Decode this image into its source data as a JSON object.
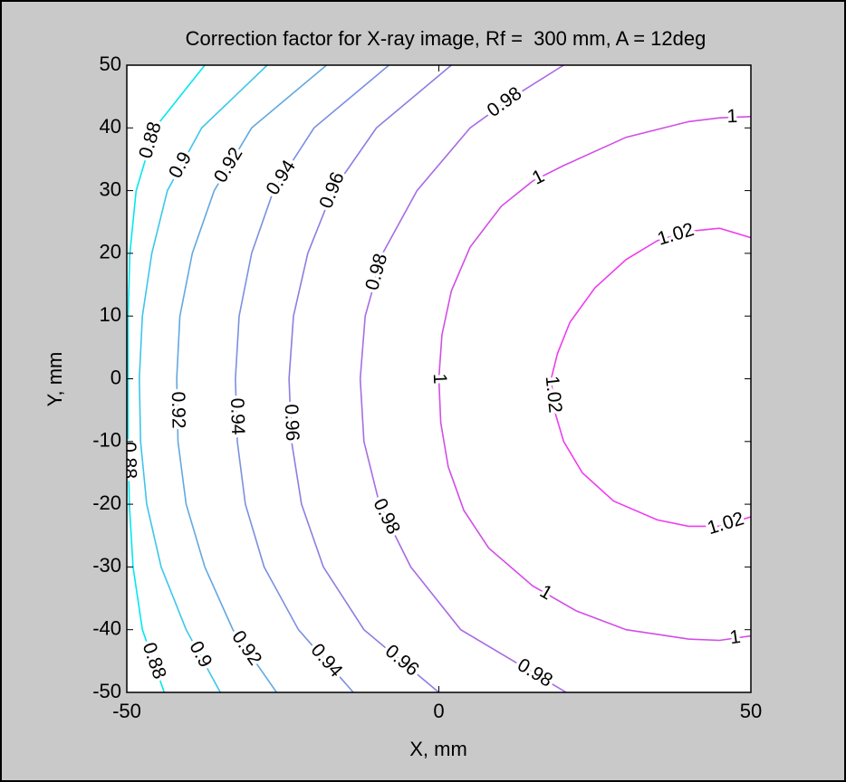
{
  "chart_data": {
    "type": "contour",
    "title": "Correction factor for X-ray image, Rf =  300 mm, A = 12deg",
    "x_label": "X, mm",
    "y_label": "Y, mm",
    "xlim": [
      -50,
      50
    ],
    "ylim": [
      -50,
      50
    ],
    "xticks": [
      -50,
      0,
      50
    ],
    "yticks": [
      -50,
      -40,
      -30,
      -20,
      -10,
      0,
      10,
      20,
      30,
      40,
      50
    ],
    "series": [
      {
        "level": 0.88,
        "color": "#00e8f0",
        "x": [
          -37.5,
          -45.5,
          -48.5,
          -49.5,
          -49.8,
          -49.8,
          -49.8,
          -49.6,
          -49,
          -47.5,
          -44
        ],
        "y": [
          50,
          40,
          30,
          20,
          10,
          0,
          -10,
          -20,
          -30,
          -40,
          -50
        ]
      },
      {
        "level": 0.9,
        "color": "#3cc6ea",
        "x": [
          -27.5,
          -38,
          -43.5,
          -46,
          -47.5,
          -48,
          -47.8,
          -46.8,
          -44.5,
          -40.5,
          -35
        ],
        "y": [
          50,
          40,
          30,
          20,
          10,
          0,
          -10,
          -20,
          -30,
          -40,
          -50
        ]
      },
      {
        "level": 0.92,
        "color": "#62a8e0",
        "x": [
          -18,
          -30,
          -36,
          -39.5,
          -41.5,
          -42,
          -41.8,
          -40.5,
          -37.5,
          -33,
          -26
        ],
        "y": [
          50,
          40,
          30,
          20,
          10,
          0,
          -10,
          -20,
          -30,
          -40,
          -50
        ]
      },
      {
        "level": 0.94,
        "color": "#7b90e0",
        "x": [
          -8,
          -20,
          -26.5,
          -30,
          -32,
          -32.6,
          -32.3,
          -31,
          -28,
          -22.5,
          -13.7
        ],
        "y": [
          50,
          40,
          30,
          20,
          10,
          0,
          -10,
          -20,
          -30,
          -40,
          -50
        ]
      },
      {
        "level": 0.96,
        "color": "#8c7ee0",
        "x": [
          2,
          -10,
          -17,
          -21,
          -23.3,
          -24,
          -23.6,
          -22,
          -18.5,
          -12,
          0
        ],
        "y": [
          50,
          40,
          30,
          20,
          10,
          0,
          -10,
          -20,
          -30,
          -40,
          -50
        ]
      },
      {
        "level": 0.98,
        "color": "#a86ce4",
        "x": [
          20,
          12,
          5,
          -3.5,
          -9,
          -11.8,
          -12.6,
          -12,
          -9.5,
          -4.5,
          3.5,
          20.4
        ],
        "y": [
          50,
          45,
          40,
          30,
          20,
          10,
          0,
          -10,
          -20,
          -30,
          -40,
          -50
        ]
      },
      {
        "level": 1,
        "color": "#d24ee6",
        "x": [
          50,
          45,
          40,
          30,
          20,
          15,
          10,
          5,
          2,
          0.5,
          0,
          0.3,
          1.5,
          4,
          8,
          15,
          22,
          30,
          40,
          45,
          50
        ],
        "y": [
          41.8,
          41.6,
          41,
          38.5,
          34,
          31.5,
          27.5,
          21,
          14,
          7,
          0,
          -7,
          -14,
          -21,
          -27,
          -33,
          -37,
          -40,
          -41.5,
          -41.7,
          -41
        ]
      },
      {
        "level": 1.02,
        "color": "#f03cf0",
        "x": [
          50,
          45,
          40,
          35,
          30,
          25,
          21,
          19,
          18,
          18.5,
          20,
          23,
          28,
          35,
          40,
          45,
          50
        ],
        "y": [
          22.5,
          24,
          23.5,
          22,
          19,
          14.5,
          9,
          4,
          0,
          -5,
          -10,
          -15,
          -19.5,
          -22.5,
          -23.5,
          -23.5,
          -22
        ]
      }
    ]
  }
}
